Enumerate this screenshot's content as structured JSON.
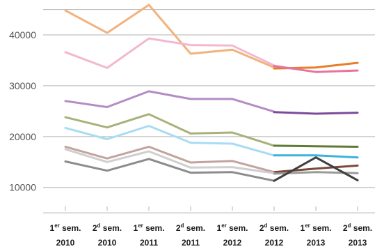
{
  "chart_data": {
    "type": "line",
    "title": "",
    "xlabel": "",
    "ylabel": "",
    "ylim": [
      5000,
      50000
    ],
    "yticks": [
      10000,
      20000,
      30000,
      40000
    ],
    "ytick_labels": [
      "10000",
      "20000",
      "30000",
      "40000"
    ],
    "grid": "horizontal",
    "categories": [
      {
        "pre": "1",
        "sup": "er",
        "post": " sem.",
        "year": "2010"
      },
      {
        "pre": "2",
        "sup": "d",
        "post": " sem.",
        "year": "2010"
      },
      {
        "pre": "1",
        "sup": "er",
        "post": " sem.",
        "year": "2011"
      },
      {
        "pre": "2",
        "sup": "d",
        "post": " sem.",
        "year": "2011"
      },
      {
        "pre": "1",
        "sup": "er",
        "post": " sem.",
        "year": "2012"
      },
      {
        "pre": "2",
        "sup": "d",
        "post": " sem.",
        "year": "2012"
      },
      {
        "pre": "1",
        "sup": "er",
        "post": " sem.",
        "year": "2013"
      },
      {
        "pre": "2",
        "sup": "d",
        "post": " sem.",
        "year": "2013"
      }
    ],
    "series": [
      {
        "color": "#f2b27e",
        "values": [
          44800,
          40400,
          45900,
          36300,
          37100,
          33600,
          null,
          null
        ]
      },
      {
        "color": "#e67e2a",
        "values": [
          null,
          null,
          null,
          null,
          null,
          33400,
          33600,
          34500
        ]
      },
      {
        "color": "#f3b8cf",
        "values": [
          36600,
          33500,
          39300,
          38000,
          37900,
          34000,
          null,
          null
        ]
      },
      {
        "color": "#e8739f",
        "values": [
          null,
          null,
          null,
          null,
          null,
          33900,
          32700,
          33000
        ]
      },
      {
        "color": "#b48cc4",
        "values": [
          27000,
          25800,
          28900,
          27400,
          27400,
          24900,
          null,
          null
        ]
      },
      {
        "color": "#7d4a99",
        "values": [
          null,
          null,
          null,
          null,
          null,
          24800,
          24500,
          24700
        ]
      },
      {
        "color": "#a7b27a",
        "values": [
          23800,
          21800,
          24400,
          20600,
          20800,
          18200,
          null,
          null
        ]
      },
      {
        "color": "#5f7a36",
        "values": [
          null,
          null,
          null,
          null,
          null,
          18200,
          18100,
          18000
        ]
      },
      {
        "color": "#a8dcf2",
        "values": [
          21700,
          19500,
          22100,
          18800,
          18600,
          16300,
          null,
          null
        ]
      },
      {
        "color": "#3db2de",
        "values": [
          null,
          null,
          null,
          null,
          null,
          16300,
          16300,
          15900
        ]
      },
      {
        "color": "#c2a39d",
        "values": [
          18000,
          15700,
          18000,
          14900,
          15200,
          13000,
          null,
          null
        ]
      },
      {
        "color": "#7a4a3a",
        "values": [
          null,
          null,
          null,
          null,
          null,
          13000,
          13700,
          14300
        ]
      },
      {
        "color": "#cfcfcf",
        "values": [
          17500,
          15000,
          17100,
          13900,
          14000,
          12800,
          null,
          null
        ]
      },
      {
        "color": "#9a9a9a",
        "values": [
          null,
          null,
          null,
          null,
          null,
          12700,
          13000,
          12800
        ]
      },
      {
        "color": "#8c8c8c",
        "values": [
          15100,
          13300,
          15600,
          12900,
          13000,
          11300,
          null,
          null
        ]
      },
      {
        "color": "#3f3f3f",
        "values": [
          null,
          null,
          null,
          null,
          null,
          11300,
          15900,
          11400
        ]
      }
    ]
  }
}
